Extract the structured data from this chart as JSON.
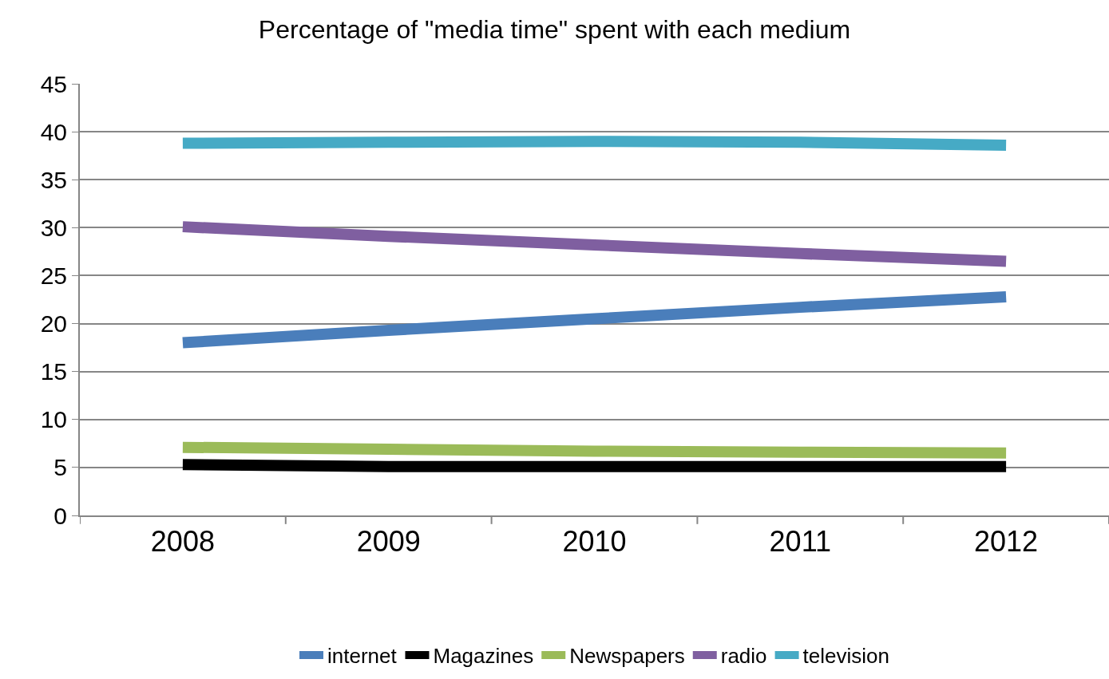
{
  "chart_data": {
    "type": "line",
    "title": "Percentage of \"media time\" spent with each medium",
    "categories": [
      "2008",
      "2009",
      "2010",
      "2011",
      "2012"
    ],
    "series": [
      {
        "name": "internet",
        "color": "#4a7ebb",
        "values": [
          18.0,
          19.3,
          20.5,
          21.7,
          22.8
        ]
      },
      {
        "name": "Magazines",
        "color": "#000000",
        "values": [
          5.3,
          5.1,
          5.1,
          5.1,
          5.1
        ]
      },
      {
        "name": "Newspapers",
        "color": "#9bbb59",
        "values": [
          7.1,
          6.9,
          6.7,
          6.6,
          6.5
        ]
      },
      {
        "name": "radio",
        "color": "#7f5fa0",
        "values": [
          30.1,
          29.1,
          28.2,
          27.3,
          26.5
        ]
      },
      {
        "name": "television",
        "color": "#46aac5",
        "values": [
          38.8,
          38.9,
          39.0,
          38.9,
          38.6
        ]
      }
    ],
    "ylim": [
      0,
      45
    ],
    "yticks": [
      0,
      5,
      10,
      15,
      20,
      25,
      30,
      35,
      40,
      45
    ],
    "grid": "y",
    "legend": "bottom",
    "marker": "none",
    "line_style": "solid"
  }
}
